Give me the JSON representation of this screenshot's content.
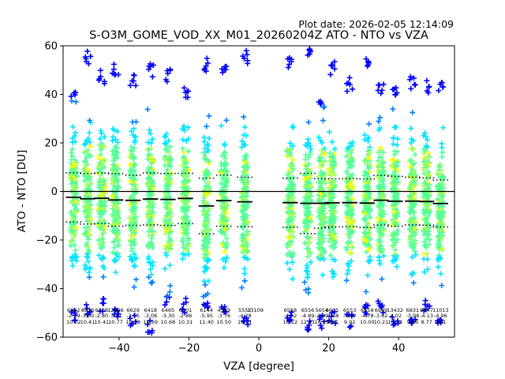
{
  "chart_data": {
    "type": "scatter",
    "title": "S-O3M_GOME_VOD_XX_M01_20260204Z ATO - NTO vs VZA",
    "plot_date": "Plot date: 2026-02-05 12:14:09",
    "xlabel": "VZA [degree]",
    "ylabel": "ATO - NTO [DU]",
    "xlim": [
      -56,
      56
    ],
    "ylim": [
      -60,
      60
    ],
    "xticks": [
      -40,
      -20,
      0,
      20,
      40
    ],
    "yticks": [
      -60,
      -40,
      -20,
      0,
      20,
      40,
      60
    ],
    "marker": "+",
    "point_colors": [
      "#0000ff",
      "#0080ff",
      "#00e5ff",
      "#55ff99",
      "#a8ff55",
      "#ffff00"
    ],
    "grid": false,
    "bins": [
      {
        "vza": -53,
        "count": "6862",
        "mean": "-2.39",
        "std": "10.02",
        "ymin": -55,
        "ymax": 42,
        "lower": -12.5,
        "upper": 7.7
      },
      {
        "vza": -49,
        "count": "8836",
        "mean": "-3.00",
        "std": "10.41",
        "ymin": -52,
        "ymax": 58,
        "lower": -13.4,
        "upper": 7.4
      },
      {
        "vza": -45,
        "count": "6208",
        "mean": "-2.80",
        "std": "10.41",
        "ymin": -50,
        "ymax": 50,
        "lower": -13.2,
        "upper": 7.6
      },
      {
        "vza": -41,
        "count": "12626",
        "mean": "-3.51",
        "std": "10.77",
        "ymin": -52,
        "ymax": 54,
        "lower": -14.3,
        "upper": 7.3
      },
      {
        "vza": -36,
        "count": "6629",
        "mean": "-3.65",
        "std": "10.39",
        "ymin": -56,
        "ymax": 49,
        "lower": -14.0,
        "upper": 6.7
      },
      {
        "vza": -31,
        "count": "6418",
        "mean": "-3.08",
        "std": "10.69",
        "ymin": -59,
        "ymax": 53,
        "lower": -13.8,
        "upper": 7.6
      },
      {
        "vza": -26,
        "count": "6465",
        "mean": "-3.30",
        "std": "10.68",
        "ymin": -47,
        "ymax": 51,
        "lower": -14.0,
        "upper": 7.4
      },
      {
        "vza": -21,
        "count": "6501",
        "mean": "-2.86",
        "std": "10.31",
        "ymin": -50,
        "ymax": 44,
        "lower": -13.2,
        "upper": 7.5
      },
      {
        "vza": -15,
        "count": "6144",
        "mean": "-5.95",
        "std": "11.40",
        "ymin": -48,
        "ymax": 55,
        "lower": -17.4,
        "upper": 5.5
      },
      {
        "vza": -10,
        "count": "4389",
        "mean": "-3.76",
        "std": "10.50",
        "ymin": -50,
        "ymax": 55,
        "lower": -14.3,
        "upper": 6.7
      },
      {
        "vza": -4,
        "count": "5552",
        "mean": "-4.28",
        "std": "10.21",
        "ymin": -55,
        "ymax": 58,
        "lower": -14.5,
        "upper": 5.9
      },
      {
        "vza": -1,
        "count": "13109",
        "mean": "",
        "std": "",
        "ymin": null,
        "ymax": null,
        "lower": null,
        "upper": null
      },
      {
        "vza": 9,
        "count": "6558",
        "mean": "-4.62",
        "std": "10.12",
        "ymin": -54,
        "ymax": 56,
        "lower": -14.7,
        "upper": 5.5
      },
      {
        "vza": 14,
        "count": "6556",
        "mean": "-4.89",
        "std": "12.41",
        "ymin": -58,
        "ymax": 59,
        "lower": -17.3,
        "upper": 7.5
      },
      {
        "vza": 18,
        "count": "5654",
        "mean": "-4.89",
        "std": "10.23",
        "ymin": -57,
        "ymax": 40,
        "lower": -15.1,
        "upper": 5.3
      },
      {
        "vza": 21,
        "count": "6605",
        "mean": "-4.68",
        "std": "9.87",
        "ymin": -55,
        "ymax": 54,
        "lower": -14.6,
        "upper": 5.2
      },
      {
        "vza": 26,
        "count": "6553",
        "mean": "-4.62",
        "std": "9.92",
        "ymin": -56,
        "ymax": 47,
        "lower": -14.5,
        "upper": 5.3
      },
      {
        "vza": 31,
        "count": "6559",
        "mean": "-4.78",
        "std": "10.00",
        "ymin": -52,
        "ymax": 56,
        "lower": -14.8,
        "upper": 5.2
      },
      {
        "vza": 35,
        "count": "6989",
        "mean": "-3.62",
        "std": "10.21",
        "ymin": -50,
        "ymax": 45,
        "lower": -13.8,
        "upper": 6.6
      },
      {
        "vza": 39,
        "count": "13432",
        "mean": "-4.02",
        "std": "10.24",
        "ymin": -56,
        "ymax": 44,
        "lower": -14.3,
        "upper": 6.2
      },
      {
        "vza": 44,
        "count": "6831",
        "mean": "-3.98",
        "std": "9.86",
        "ymin": -55,
        "ymax": 48,
        "lower": -13.8,
        "upper": 5.9
      },
      {
        "vza": 48,
        "count": "8947",
        "mean": "-4.13",
        "std": "9.77",
        "ymin": -50,
        "ymax": 46,
        "lower": -13.9,
        "upper": 5.6
      },
      {
        "vza": 52,
        "count": "11013",
        "mean": "-4.96",
        "std": "9.61",
        "ymin": -55,
        "ymax": 47,
        "lower": -14.6,
        "upper": 4.7
      }
    ]
  }
}
